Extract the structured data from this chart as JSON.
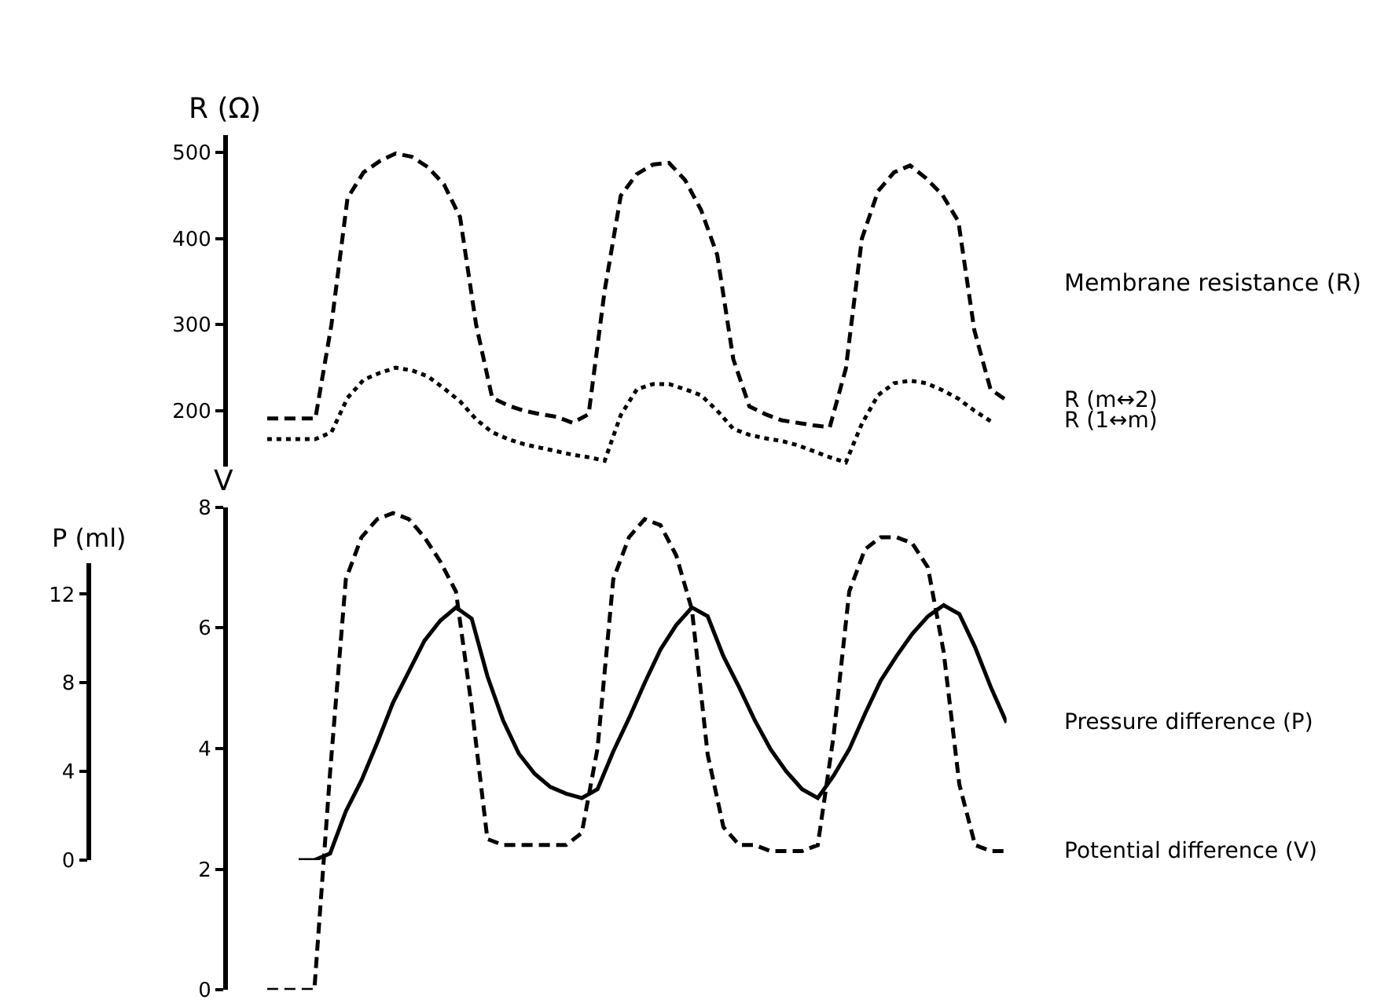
{
  "chart_data": [
    {
      "type": "line",
      "tick_labels": "y",
      "ylabel": "R (Ω)",
      "ylim": [
        135,
        520
      ],
      "yticks": [
        200,
        300,
        400,
        500
      ],
      "annotations": [
        "Membrane resistance (R)"
      ],
      "categories": [
        null,
        null,
        null,
        null,
        null,
        null,
        null,
        null,
        null,
        null,
        null,
        null,
        null,
        null,
        null,
        null,
        null,
        null,
        null,
        null,
        null,
        null,
        null,
        null,
        null,
        null,
        null,
        null,
        null,
        null,
        null,
        null,
        null,
        null,
        null,
        null,
        null,
        null,
        null,
        null,
        null,
        null,
        null,
        null,
        null,
        null,
        null
      ],
      "series": [
        {
          "name": "R (m↔2)",
          "color": "#000000",
          "line_style": "dashed",
          "values": [
            191,
            191,
            191,
            191,
            300,
            447,
            477,
            490,
            499,
            495,
            483,
            463,
            425,
            300,
            215,
            206,
            200,
            196,
            193,
            186,
            196,
            340,
            450,
            475,
            486,
            488,
            468,
            433,
            381,
            260,
            205,
            196,
            189,
            186,
            183,
            181,
            249,
            400,
            455,
            477,
            485,
            470,
            451,
            420,
            293,
            225,
            212
          ]
        },
        {
          "name": "R (1↔m)",
          "color": "#000000",
          "line_style": "dotted",
          "values": [
            167,
            167,
            167,
            167,
            175,
            215,
            236,
            244,
            250,
            247,
            240,
            226,
            211,
            190,
            175,
            167,
            161,
            157,
            153,
            149,
            146,
            142,
            195,
            225,
            231,
            231,
            225,
            218,
            200,
            179,
            172,
            168,
            165,
            160,
            153,
            146,
            140,
            185,
            218,
            232,
            235,
            232,
            224,
            214,
            200,
            188,
            null
          ]
        }
      ]
    },
    {
      "type": "line",
      "tick_labels": "y",
      "ylabel": "V",
      "ylim": [
        0,
        8
      ],
      "yticks": [
        0,
        2,
        4,
        6,
        8
      ],
      "y2label": "P (ml)",
      "y2lim": [
        0,
        13.4
      ],
      "y2ticks": [
        0,
        4,
        8,
        12
      ],
      "categories": [
        null,
        null,
        null,
        null,
        null,
        null,
        null,
        null,
        null,
        null,
        null,
        null,
        null,
        null,
        null,
        null,
        null,
        null,
        null,
        null,
        null,
        null,
        null,
        null,
        null,
        null,
        null,
        null,
        null,
        null,
        null,
        null,
        null,
        null,
        null,
        null,
        null,
        null,
        null,
        null,
        null,
        null,
        null,
        null,
        null,
        null,
        null,
        null
      ],
      "series": [
        {
          "name": "Pressure difference (P)",
          "color": "#000000",
          "line_style": "solid",
          "axis": "y2",
          "values": [
            null,
            null,
            0,
            0,
            0.3,
            2.2,
            3.6,
            5.3,
            7.1,
            8.5,
            9.9,
            10.8,
            11.4,
            10.9,
            8.3,
            6.3,
            4.8,
            3.9,
            3.3,
            3.0,
            2.8,
            3.2,
            4.9,
            6.4,
            8.0,
            9.5,
            10.6,
            11.4,
            11.0,
            9.2,
            7.8,
            6.3,
            5.0,
            4.0,
            3.2,
            2.8,
            3.8,
            5.0,
            6.6,
            8.1,
            9.2,
            10.2,
            11.0,
            11.5,
            11.1,
            9.6,
            7.8,
            6.2
          ]
        },
        {
          "name": "Potential difference (V)",
          "color": "#000000",
          "line_style": "dashed",
          "values": [
            0,
            0,
            0,
            0,
            3.6,
            6.8,
            7.5,
            7.8,
            7.9,
            7.8,
            7.5,
            7.1,
            6.6,
            4.7,
            2.5,
            2.4,
            2.4,
            2.4,
            2.4,
            2.4,
            2.6,
            4.0,
            6.8,
            7.5,
            7.8,
            7.7,
            7.2,
            6.3,
            3.9,
            2.7,
            2.4,
            2.4,
            2.3,
            2.3,
            2.3,
            2.4,
            4.2,
            6.6,
            7.3,
            7.5,
            7.5,
            7.4,
            7.0,
            5.6,
            3.4,
            2.4,
            2.3,
            2.3
          ]
        }
      ]
    }
  ]
}
